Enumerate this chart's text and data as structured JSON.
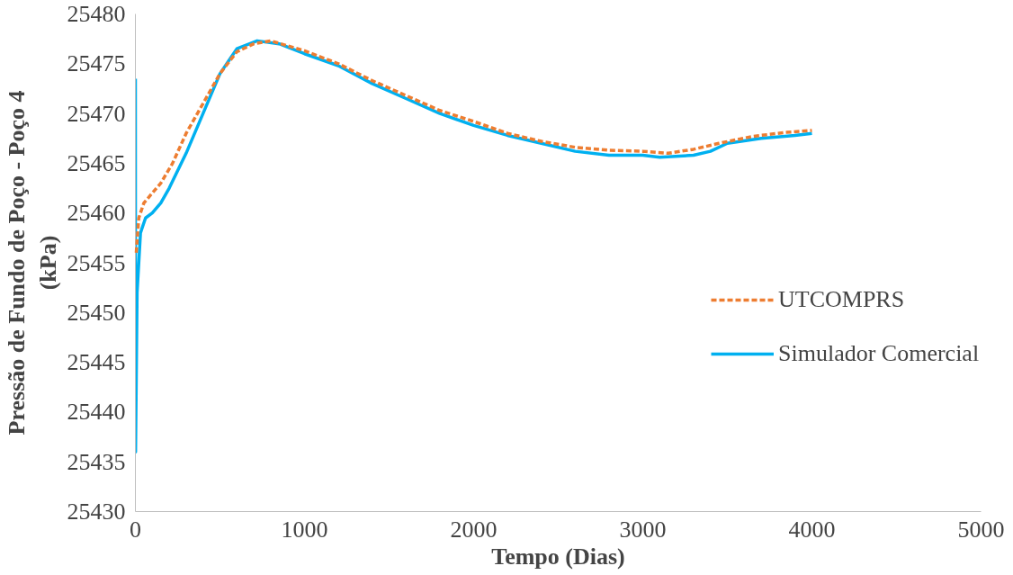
{
  "chart_data": {
    "type": "line",
    "xlabel": "Tempo (Dias)",
    "ylabel": "Pressão de Fundo de Poço - Poço 4\n(kPa)",
    "xlim": [
      0,
      5000
    ],
    "xticks": [
      0,
      1000,
      2000,
      3000,
      4000,
      5000
    ],
    "ylim": [
      25430,
      25480
    ],
    "yticks": [
      25430,
      25435,
      25440,
      25445,
      25450,
      25455,
      25460,
      25465,
      25470,
      25475,
      25480
    ],
    "grid": false,
    "legend": "right",
    "marker": "none",
    "series": [
      {
        "name": "UTCOMPRS",
        "color": "#ed7d31",
        "line_style": "dashed",
        "x": [
          5,
          20,
          50,
          100,
          150,
          220,
          300,
          400,
          500,
          600,
          700,
          800,
          1000,
          1200,
          1400,
          1600,
          1800,
          2000,
          2200,
          2400,
          2600,
          2800,
          3000,
          3150,
          3300,
          3450,
          3650,
          3850,
          4000
        ],
        "values": [
          25456,
          25459.5,
          25461,
          25462,
          25463,
          25465,
          25468,
          25471,
          25474,
          25476.2,
          25477,
          25477.3,
          25476.3,
          25475,
          25473.3,
          25471.8,
          25470.3,
          25469.2,
          25468,
          25467.2,
          25466.6,
          25466.3,
          25466.2,
          25466,
          25466.4,
          25467,
          25467.7,
          25468.1,
          25468.3
        ]
      },
      {
        "name": "Simulador Comercial",
        "color": "#00b0f0",
        "line_style": "solid",
        "x": [
          0,
          1,
          10,
          30,
          60,
          100,
          150,
          200,
          300,
          400,
          500,
          600,
          720,
          850,
          1000,
          1200,
          1400,
          1600,
          1800,
          2000,
          2200,
          2400,
          2600,
          2800,
          3000,
          3100,
          3300,
          3400,
          3500,
          3700,
          3900,
          4000
        ],
        "values": [
          25473.5,
          25436,
          25452,
          25458,
          25459.5,
          25460,
          25461,
          25462.5,
          25466,
          25470,
          25474,
          25476.5,
          25477.3,
          25477,
          25476,
          25474.8,
          25473,
          25471.5,
          25470,
          25468.8,
          25467.8,
          25467,
          25466.2,
          25465.8,
          25465.8,
          25465.6,
          25465.8,
          25466.2,
          25467,
          25467.5,
          25467.8,
          25468
        ]
      }
    ]
  }
}
